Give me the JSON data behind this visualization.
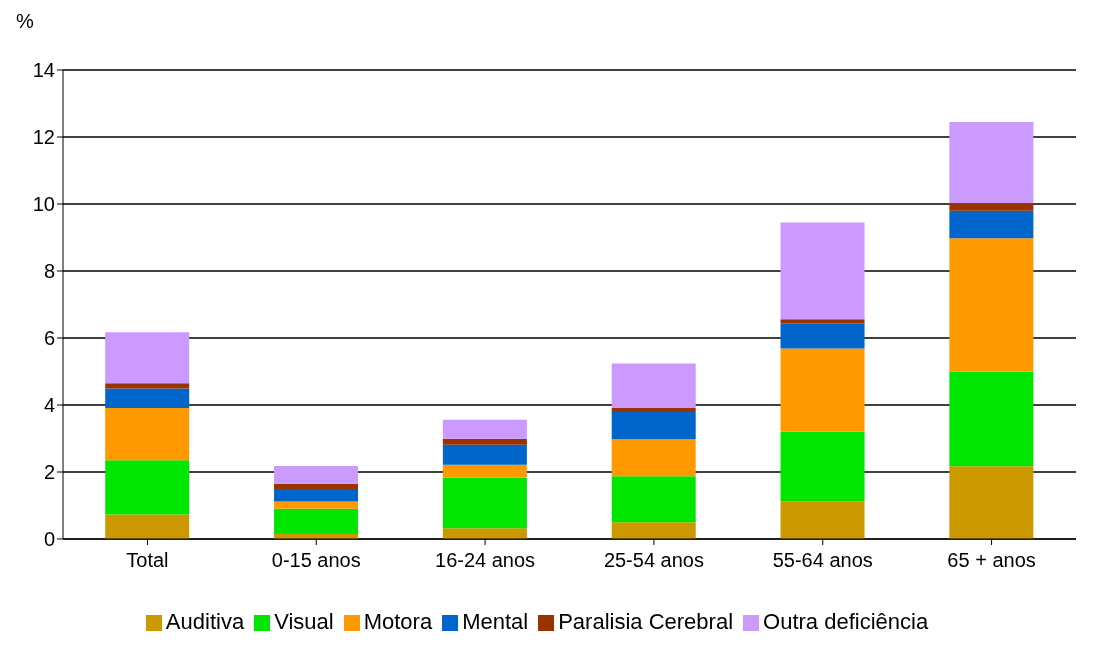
{
  "chart_data": {
    "type": "bar",
    "stacked": true,
    "ylabel": "%",
    "categories": [
      "Total",
      "0-15 anos",
      "16-24 anos",
      "25-54 anos",
      "55-64 anos",
      "65 + anos"
    ],
    "series": [
      {
        "name": "Auditiva",
        "color": "#cc9900",
        "values": [
          0.73,
          0.15,
          0.32,
          0.5,
          1.13,
          2.17
        ]
      },
      {
        "name": "Visual",
        "color": "#00e600",
        "values": [
          1.62,
          0.75,
          1.51,
          1.37,
          2.07,
          2.83
        ]
      },
      {
        "name": "Motora",
        "color": "#ff9900",
        "values": [
          1.56,
          0.22,
          0.39,
          1.11,
          2.49,
          3.98
        ]
      },
      {
        "name": "Mental",
        "color": "#0066cc",
        "values": [
          0.58,
          0.37,
          0.59,
          0.81,
          0.75,
          0.82
        ]
      },
      {
        "name": "Paralisia Cerebral",
        "color": "#993300",
        "values": [
          0.16,
          0.16,
          0.18,
          0.12,
          0.12,
          0.23
        ]
      },
      {
        "name": "Outra deficiência",
        "color": "#cc99ff",
        "values": [
          1.52,
          0.53,
          0.57,
          1.33,
          2.89,
          2.42
        ]
      }
    ],
    "ylim": [
      0,
      14
    ],
    "yticks": [
      0,
      2,
      4,
      6,
      8,
      10,
      12,
      14
    ],
    "grid": "y",
    "legend": "bottom"
  }
}
